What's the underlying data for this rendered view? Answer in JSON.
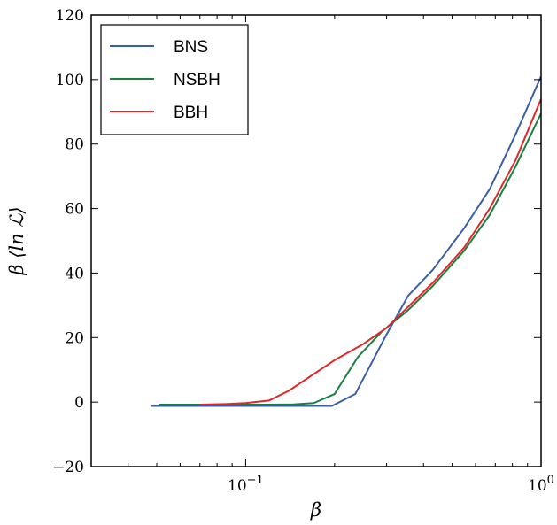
{
  "chart_data": {
    "type": "line",
    "xscale": "log",
    "xlim": [
      0.03,
      1.0
    ],
    "ylim": [
      -20,
      120
    ],
    "xlabel": "β",
    "ylabel": "β ⟨ln ℒ⟩",
    "x_ticks": [
      {
        "value": 0.1,
        "base": "10",
        "exp": "−1"
      },
      {
        "value": 1.0,
        "base": "10",
        "exp": "0"
      }
    ],
    "y_ticks": [
      {
        "value": -20,
        "label": "−20"
      },
      {
        "value": 0,
        "label": "0"
      },
      {
        "value": 20,
        "label": "20"
      },
      {
        "value": 40,
        "label": "40"
      },
      {
        "value": 60,
        "label": "60"
      },
      {
        "value": 80,
        "label": "80"
      },
      {
        "value": 100,
        "label": "100"
      },
      {
        "value": 120,
        "label": "120"
      }
    ],
    "legend_position": "top-left",
    "grid": false,
    "series": [
      {
        "name": "BNS",
        "color": "#3a5fa8",
        "x": [
          0.048,
          0.06,
          0.08,
          0.1,
          0.12,
          0.14,
          0.165,
          0.196,
          0.235,
          0.3,
          0.355,
          0.43,
          0.55,
          0.67,
          0.82,
          1.0
        ],
        "y": [
          -1.2,
          -1.2,
          -1.2,
          -1.2,
          -1.2,
          -1.2,
          -1.2,
          -1.2,
          2.5,
          21.0,
          33.0,
          41.0,
          54.0,
          66.0,
          83.0,
          101.0
        ]
      },
      {
        "name": "NSBH",
        "color": "#1a8040",
        "x": [
          0.051,
          0.07,
          0.09,
          0.12,
          0.145,
          0.17,
          0.2,
          0.24,
          0.29,
          0.35,
          0.43,
          0.55,
          0.67,
          0.82,
          1.0
        ],
        "y": [
          -0.8,
          -0.8,
          -0.8,
          -0.8,
          -0.7,
          -0.3,
          2.5,
          14.0,
          22.0,
          28.0,
          36.0,
          47.0,
          58.0,
          73.0,
          89.5
        ]
      },
      {
        "name": "BBH",
        "color": "#e02828",
        "x": [
          0.07,
          0.085,
          0.1,
          0.12,
          0.14,
          0.2,
          0.25,
          0.3,
          0.35,
          0.43,
          0.55,
          0.67,
          0.82,
          1.0
        ],
        "y": [
          -0.8,
          -0.6,
          -0.3,
          0.5,
          3.5,
          13.0,
          18.0,
          23.0,
          29.0,
          37.0,
          48.0,
          60.0,
          75.0,
          94.0
        ]
      }
    ]
  }
}
